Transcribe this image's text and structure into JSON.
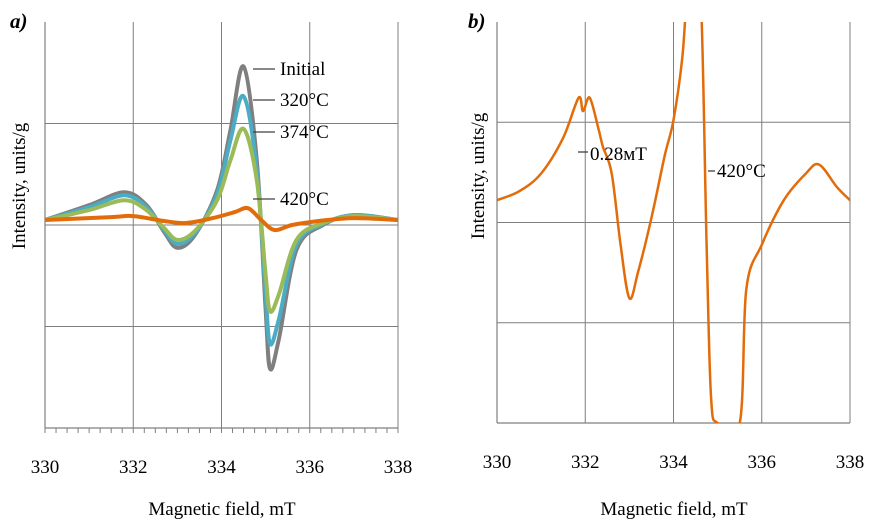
{
  "chart_data": [
    {
      "type": "line",
      "panel_tag": "a)",
      "xlabel": "Magnetic field, mT",
      "ylabel": "Intensity, units/g",
      "xlim": [
        330,
        338
      ],
      "ylim": [
        -2.1,
        2.0
      ],
      "x_ticks": [
        330,
        332,
        334,
        336,
        338
      ],
      "grid": true,
      "series": [
        {
          "name": "Initial",
          "color": "#7f7f7f",
          "points": [
            [
              330,
              0
            ],
            [
              331,
              0.15
            ],
            [
              331.8,
              0.28
            ],
            [
              332.3,
              0.15
            ],
            [
              332.7,
              -0.12
            ],
            [
              333.0,
              -0.28
            ],
            [
              333.4,
              -0.15
            ],
            [
              333.9,
              0.3
            ],
            [
              334.2,
              0.9
            ],
            [
              334.5,
              1.55
            ],
            [
              334.8,
              0.6
            ],
            [
              335.0,
              -0.9
            ],
            [
              335.1,
              -1.5
            ],
            [
              335.3,
              -1.2
            ],
            [
              335.7,
              -0.3
            ],
            [
              336.3,
              -0.05
            ],
            [
              337,
              0.05
            ],
            [
              338,
              0
            ]
          ]
        },
        {
          "name": "320°C",
          "color": "#4bacc6",
          "points": [
            [
              330,
              0
            ],
            [
              331,
              0.13
            ],
            [
              331.8,
              0.25
            ],
            [
              332.3,
              0.13
            ],
            [
              332.7,
              -0.1
            ],
            [
              333.0,
              -0.24
            ],
            [
              333.4,
              -0.13
            ],
            [
              333.9,
              0.26
            ],
            [
              334.2,
              0.8
            ],
            [
              334.5,
              1.25
            ],
            [
              334.8,
              0.5
            ],
            [
              335.0,
              -0.75
            ],
            [
              335.1,
              -1.25
            ],
            [
              335.3,
              -1.0
            ],
            [
              335.7,
              -0.25
            ],
            [
              336.3,
              -0.04
            ],
            [
              337,
              0.05
            ],
            [
              338,
              0
            ]
          ]
        },
        {
          "name": "374°C",
          "color": "#9bbb59",
          "points": [
            [
              330,
              0
            ],
            [
              331,
              0.1
            ],
            [
              331.8,
              0.2
            ],
            [
              332.3,
              0.1
            ],
            [
              332.7,
              -0.08
            ],
            [
              333.0,
              -0.2
            ],
            [
              333.4,
              -0.11
            ],
            [
              333.9,
              0.2
            ],
            [
              334.2,
              0.6
            ],
            [
              334.5,
              0.92
            ],
            [
              334.8,
              0.4
            ],
            [
              335.0,
              -0.55
            ],
            [
              335.1,
              -0.92
            ],
            [
              335.3,
              -0.75
            ],
            [
              335.7,
              -0.2
            ],
            [
              336.3,
              -0.03
            ],
            [
              337,
              0.04
            ],
            [
              338,
              0
            ]
          ]
        },
        {
          "name": "420°C",
          "color": "#e36c0a",
          "points": [
            [
              330,
              0
            ],
            [
              331.5,
              0.03
            ],
            [
              332.0,
              0.04
            ],
            [
              332.7,
              -0.01
            ],
            [
              333.2,
              -0.03
            ],
            [
              333.8,
              0.02
            ],
            [
              334.3,
              0.08
            ],
            [
              334.6,
              0.12
            ],
            [
              334.9,
              0.0
            ],
            [
              335.2,
              -0.1
            ],
            [
              335.6,
              -0.05
            ],
            [
              336.2,
              -0.01
            ],
            [
              337,
              0.02
            ],
            [
              338,
              0
            ]
          ]
        }
      ]
    },
    {
      "type": "line",
      "panel_tag": "b)",
      "xlabel": "Magnetic field, mT",
      "ylabel": "Intensity, units/g",
      "xlim": [
        330,
        338
      ],
      "ylim": [
        -0.25,
        0.2
      ],
      "x_ticks": [
        330,
        332,
        334,
        336,
        338
      ],
      "grid": true,
      "annotation": "0.28мT",
      "series": [
        {
          "name": "420°C",
          "color": "#e36c0a",
          "points": [
            [
              330,
              0.0
            ],
            [
              330.5,
              0.01
            ],
            [
              331.0,
              0.03
            ],
            [
              331.5,
              0.07
            ],
            [
              331.85,
              0.115
            ],
            [
              331.95,
              0.1
            ],
            [
              332.1,
              0.115
            ],
            [
              332.3,
              0.08
            ],
            [
              332.4,
              0.06
            ],
            [
              332.6,
              0.03
            ],
            [
              332.8,
              -0.05
            ],
            [
              333.0,
              -0.11
            ],
            [
              333.2,
              -0.08
            ],
            [
              333.5,
              -0.02
            ],
            [
              333.8,
              0.05
            ],
            [
              334.0,
              0.09
            ],
            [
              334.2,
              0.16
            ],
            [
              334.35,
              0.25
            ],
            [
              334.6,
              0.25
            ],
            [
              334.75,
              -0.05
            ],
            [
              334.85,
              -0.22
            ],
            [
              335.0,
              -0.25
            ],
            [
              335.5,
              -0.25
            ],
            [
              335.65,
              -0.1
            ],
            [
              336.0,
              -0.05
            ],
            [
              336.5,
              0.0
            ],
            [
              337.0,
              0.03
            ],
            [
              337.3,
              0.04
            ],
            [
              337.7,
              0.015
            ],
            [
              338,
              0.0
            ]
          ]
        }
      ]
    }
  ]
}
